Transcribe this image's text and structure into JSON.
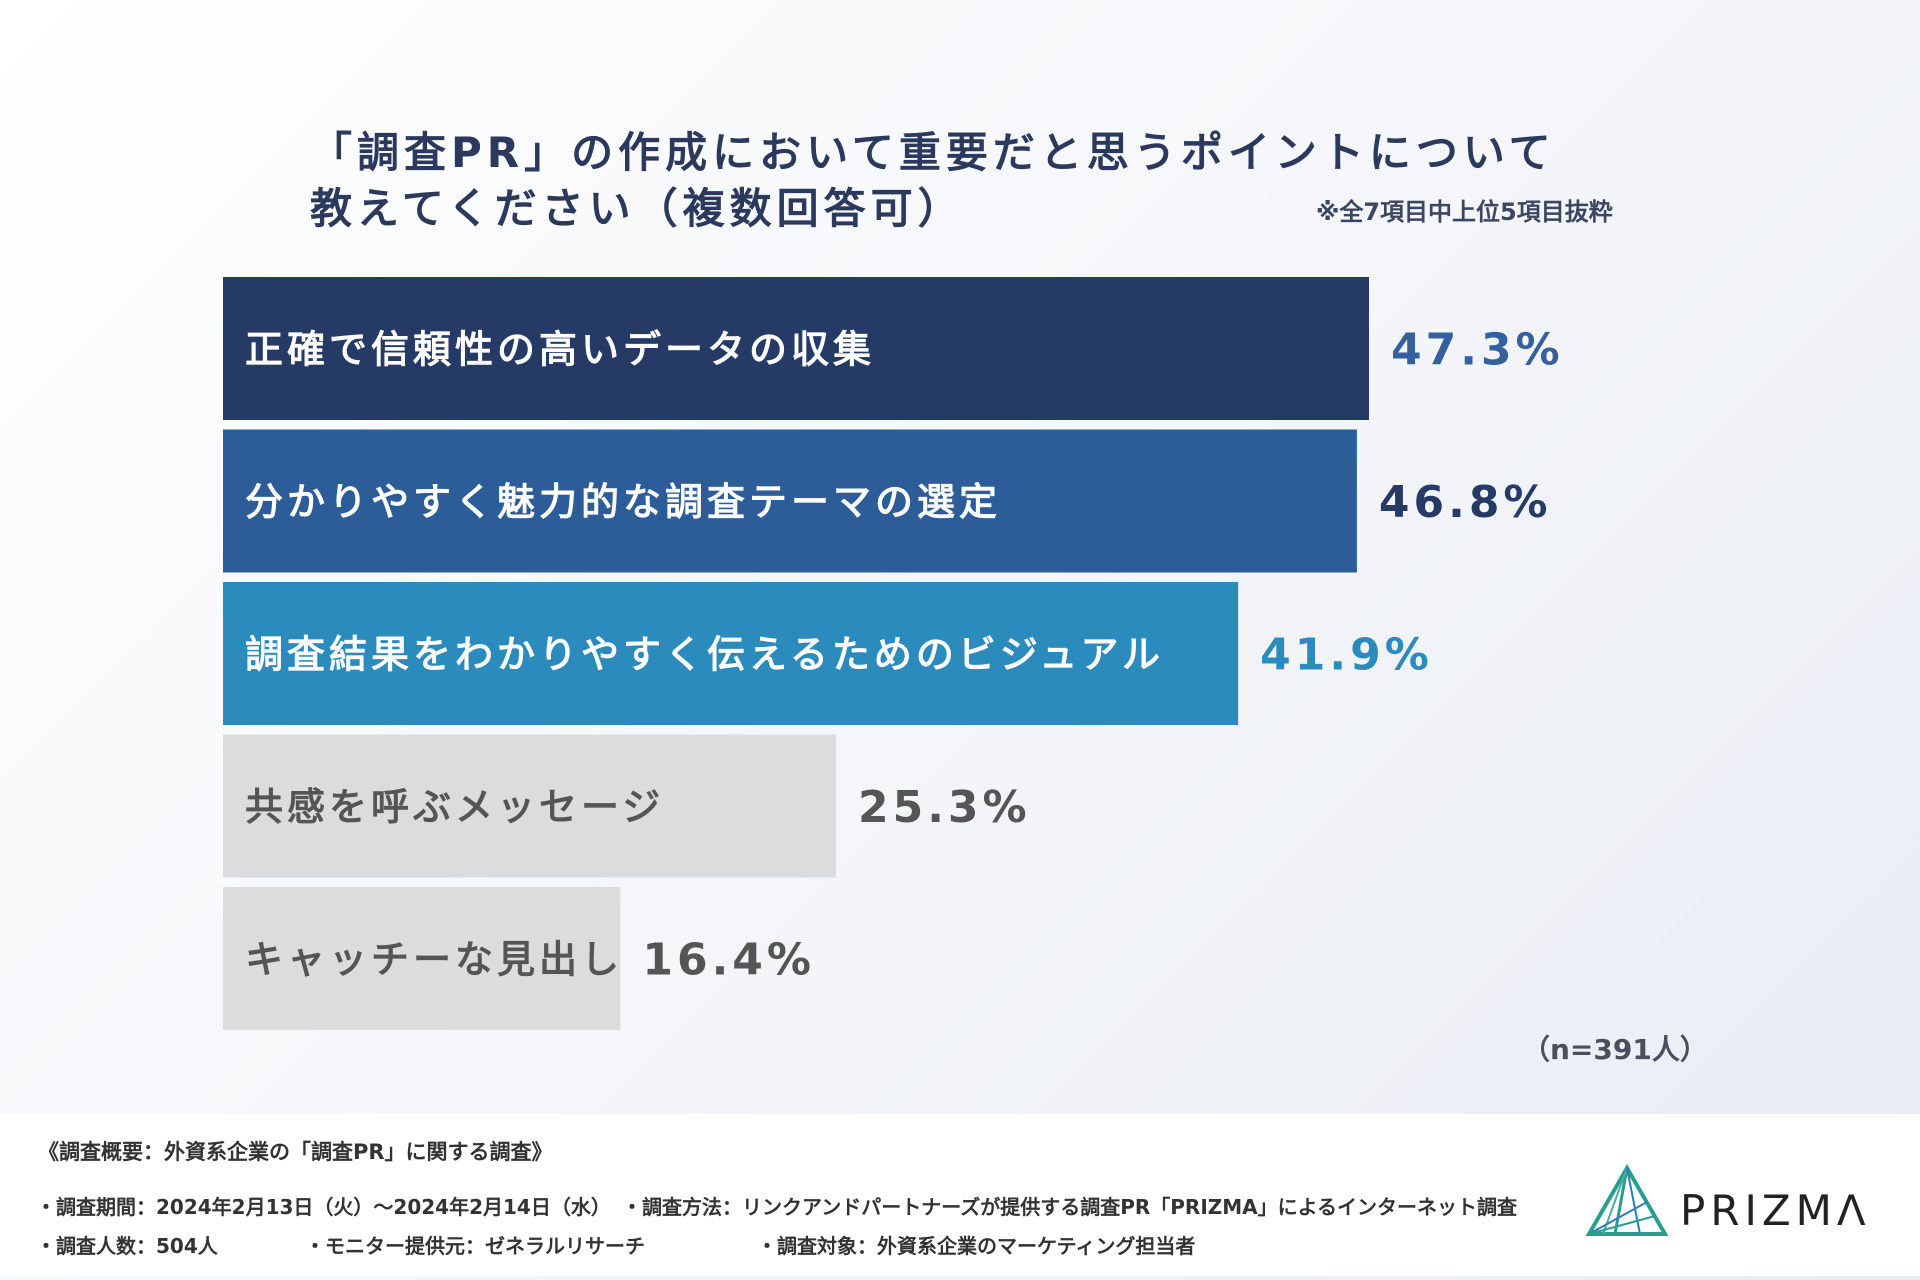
{
  "title": {
    "line1": "「調査PR」の作成において重要だと思うポイントについて",
    "line2": "教えてください（複数回答可）"
  },
  "note": "※全7項目中上位5項目抜粋",
  "sample": "（n=391人）",
  "chart_data": {
    "type": "bar",
    "orientation": "horizontal",
    "categories": [
      "正確で信頼性の高いデータの収集",
      "分かりやすく魅力的な調査テーマの選定",
      "調査結果をわかりやすく伝えるためのビジュアル",
      "共感を呼ぶメッセージ",
      "キャッチーな見出し"
    ],
    "values": [
      47.3,
      46.8,
      41.9,
      25.3,
      16.4
    ],
    "value_labels": [
      "47.3%",
      "46.8%",
      "41.9%",
      "25.3%",
      "16.4%"
    ],
    "bar_colors": [
      "#263a66",
      "#2d5d98",
      "#2b8bbd",
      "#dcdcdc",
      "#dcdcdc"
    ],
    "label_colors": [
      "#ffffff",
      "#ffffff",
      "#ffffff",
      "#555555",
      "#555555"
    ],
    "value_colors": [
      "#35609e",
      "#263a66",
      "#2b8bbd",
      "#555555",
      "#555555"
    ],
    "unit": "%"
  },
  "footer": {
    "survey_title": "《調査概要：外資系企業の「調査PR」に関する調査》",
    "period": "・調査期間：2024年2月13日（火）～2024年2月14日（水）",
    "method": "・調査方法：リンクアンドパートナーズが提供する調査PR「PRIZMA」によるインターネット調査",
    "count": "・調査人数：504人",
    "provider": "・モニター提供元：ゼネラルリサーチ",
    "target": "・調査対象：外資系企業のマーケティング担当者"
  },
  "logo": {
    "text": "PRIZMΛ",
    "icon": "prism-triangle-icon"
  }
}
